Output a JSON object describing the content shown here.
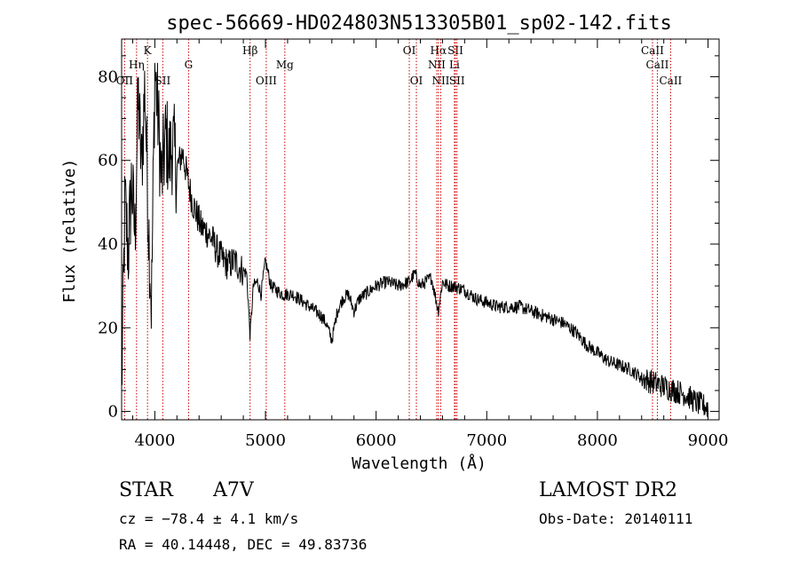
{
  "chart_data": {
    "type": "line",
    "title": "spec-56669-HD024803N513305B01_sp02-142.fits",
    "xlabel": "Wavelength (Å)",
    "ylabel": "Flux (relative)",
    "xlim": [
      3700,
      9100
    ],
    "ylim": [
      -2,
      89
    ],
    "xticks": [
      4000,
      5000,
      6000,
      7000,
      8000,
      9000
    ],
    "yticks": [
      0,
      20,
      40,
      60,
      80
    ],
    "grid": false,
    "series": [
      {
        "x": [
          3700,
          3730,
          3760,
          3790,
          3820,
          3850,
          3880,
          3910,
          3940,
          3970,
          4000,
          4030,
          4060,
          4101,
          4130,
          4160,
          4200,
          4250,
          4300,
          4340,
          4380,
          4420,
          4470,
          4520,
          4570,
          4620,
          4670,
          4720,
          4780,
          4830,
          4861,
          4890,
          4930,
          4960,
          5000,
          5050,
          5100,
          5150,
          5200,
          5250,
          5300,
          5350,
          5400,
          5450,
          5500,
          5550,
          5600,
          5650,
          5700,
          5750,
          5800,
          5850,
          5900,
          5950,
          6000,
          6100,
          6200,
          6300,
          6350,
          6400,
          6450,
          6500,
          6563,
          6600,
          6650,
          6700,
          6800,
          6900,
          7000,
          7100,
          7200,
          7300,
          7400,
          7500,
          7600,
          7700,
          7800,
          7900,
          8000,
          8100,
          8200,
          8300,
          8400,
          8500,
          8600,
          8700,
          8800,
          8900,
          9000
        ],
        "values": [
          5,
          50,
          38,
          55,
          42,
          75,
          58,
          78,
          48,
          25,
          82,
          70,
          55,
          66,
          60,
          64,
          58,
          62,
          55,
          50,
          47,
          44,
          43,
          41,
          38,
          36,
          35,
          36,
          34,
          33,
          18,
          30,
          31,
          28,
          36,
          30,
          29,
          28,
          28,
          28,
          27,
          26,
          25,
          24,
          23,
          21,
          17,
          24,
          27,
          28,
          24,
          27,
          28,
          29,
          30,
          31,
          30,
          31,
          33,
          30,
          31,
          32,
          24,
          31,
          30,
          30,
          29,
          27,
          26,
          25,
          25,
          25,
          24,
          23,
          22,
          21,
          19,
          16,
          14,
          12,
          11,
          10,
          8,
          7,
          6,
          5,
          4,
          2,
          1
        ]
      }
    ],
    "lines": [
      {
        "label": "OII",
        "x": 3727,
        "row": 3
      },
      {
        "label": "Hη",
        "x": 3835,
        "row": 2
      },
      {
        "label": "K",
        "x": 3934,
        "row": 1
      },
      {
        "label": "SII",
        "x": 4072,
        "row": 3
      },
      {
        "label": "G",
        "x": 4305,
        "row": 2
      },
      {
        "label": "Hβ",
        "x": 4861,
        "row": 1
      },
      {
        "label": "OIII",
        "x": 5007,
        "row": 3
      },
      {
        "label": "Mg",
        "x": 5175,
        "row": 2
      },
      {
        "label": "OI",
        "x": 6300,
        "row": 1
      },
      {
        "label": "OI",
        "x": 6364,
        "row": 3
      },
      {
        "label": "Hα",
        "x": 6563,
        "row": 1
      },
      {
        "label": "NII",
        "x": 6548,
        "row": 2
      },
      {
        "label": "NII",
        "x": 6584,
        "row": 3
      },
      {
        "label": "SII",
        "x": 6717,
        "row": 1
      },
      {
        "label": "Li",
        "x": 6708,
        "row": 2
      },
      {
        "label": "SII",
        "x": 6731,
        "row": 3
      },
      {
        "label": "CaII",
        "x": 8498,
        "row": 1
      },
      {
        "label": "CaII",
        "x": 8542,
        "row": 2
      },
      {
        "label": "CaII",
        "x": 8662,
        "row": 3
      }
    ]
  },
  "info": {
    "class_label": "STAR",
    "subclass": "A7V",
    "cz": "cz = −78.4 ± 4.1 km/s",
    "radec": "RA =  40.14448, DEC =  49.83736",
    "survey": "LAMOST DR2",
    "obs_date": "Obs-Date: 20140111"
  }
}
